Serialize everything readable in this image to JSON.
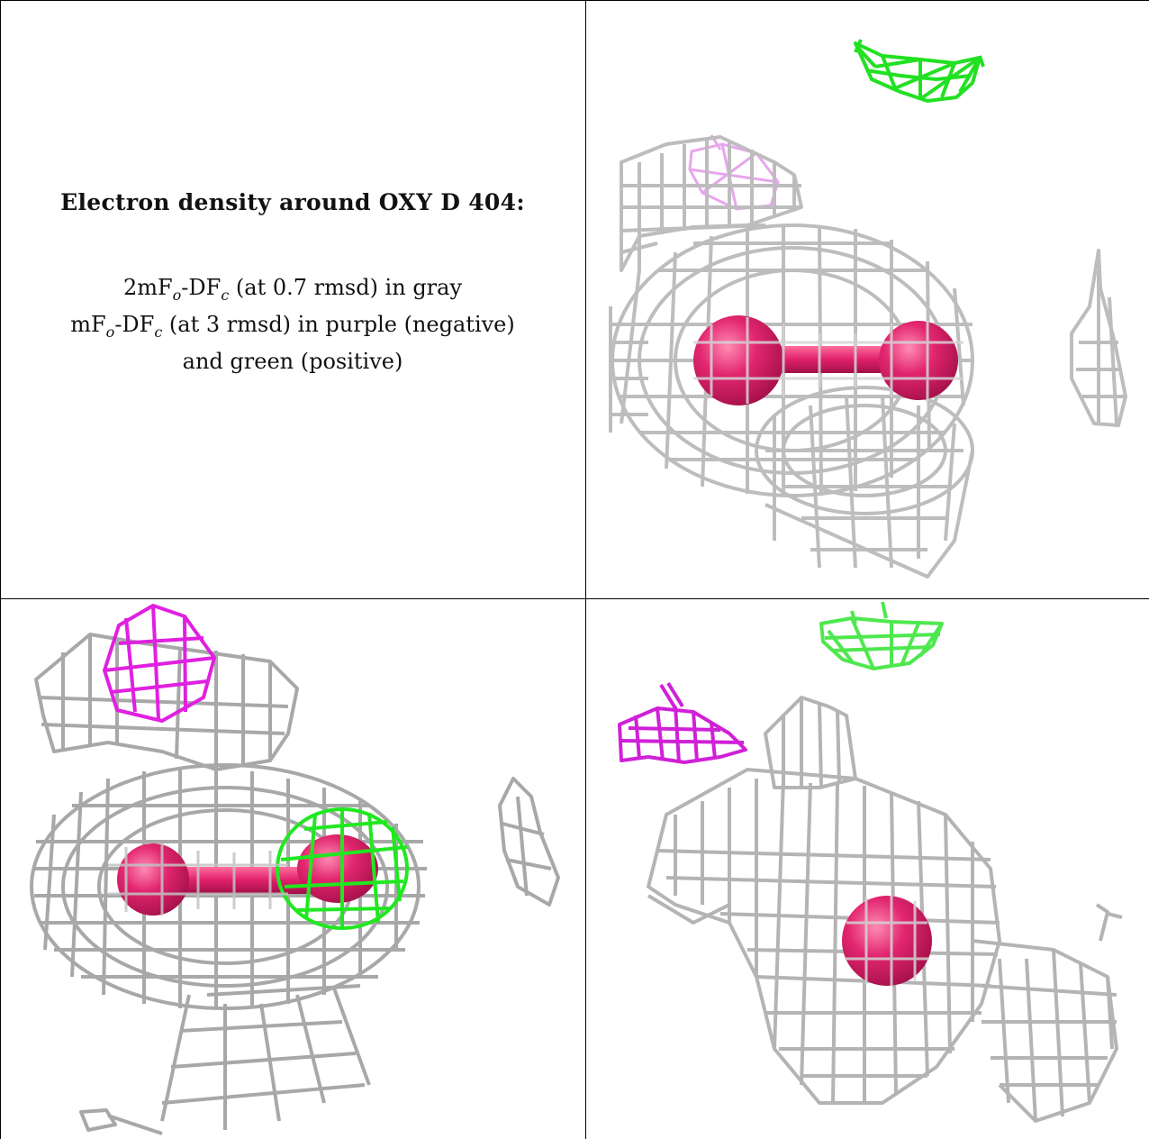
{
  "caption": {
    "title": "Electron density around OXY D 404:",
    "line1": {
      "a": "2mF",
      "a_sub": "o",
      "b": "-DF",
      "b_sub": "c",
      "rest": " (at 0.7 rmsd) in gray"
    },
    "line2": {
      "a": "mF",
      "a_sub": "o",
      "b": "-DF",
      "b_sub": "c",
      "rest": " (at 3 rmsd) in purple (negative)"
    },
    "line3": "and green (positive)"
  },
  "colors": {
    "gray_mesh": "#b9b9b9",
    "negative_mesh": "#e020e0",
    "positive_mesh": "#20e020",
    "ligand": "#e0206a"
  }
}
